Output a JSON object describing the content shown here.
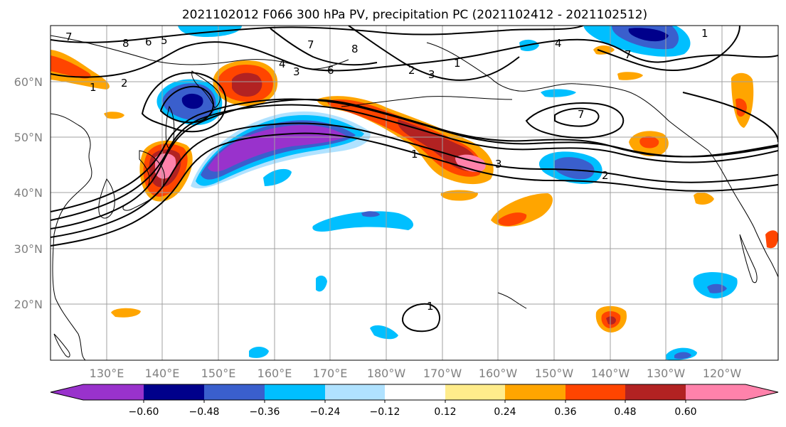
{
  "map": {
    "title": "2021102012 F066 300 hPa PV, precipitation PC (2021102412 - 2021102512)",
    "lat_labels": [
      "60°N",
      "50°N",
      "40°N",
      "30°N",
      "20°N"
    ],
    "lon_labels": [
      "130°E",
      "140°E",
      "150°E",
      "160°E",
      "170°E",
      "180°W",
      "170°W",
      "160°W",
      "150°W",
      "140°W",
      "130°W",
      "120°W"
    ],
    "contour_labels": [
      "7",
      "8",
      "6",
      "5",
      "2",
      "1",
      "4",
      "3",
      "6",
      "8",
      "7",
      "1",
      "2",
      "7",
      "1",
      "2",
      "3",
      "1",
      "3",
      "4",
      "7",
      "1"
    ],
    "colorbar": {
      "tick_labels": [
        "−0.60",
        "−0.48",
        "−0.36",
        "−0.24",
        "−0.12",
        "0.12",
        "0.24",
        "0.36",
        "0.48",
        "0.60"
      ],
      "colors": [
        "#9932CC",
        "#00008B",
        "#3A5FCD",
        "#00BFFF",
        "#B0E2FF",
        "#FFFFFF",
        "#FFEC8B",
        "#FFA500",
        "#FF4500",
        "#B22222",
        "#FF82AB"
      ]
    },
    "shading_colors": {
      "strong_negative": "#9932CC",
      "dark_negative": "#00008B",
      "mid_negative": "#3A5FCD",
      "light_negative": "#00BFFF",
      "pale_negative": "#B0E2FF",
      "pale_positive": "#FFEC8B",
      "light_positive": "#FFA500",
      "mid_positive": "#FF4500",
      "dark_positive": "#B22222",
      "strong_positive": "#FF82AB"
    }
  }
}
